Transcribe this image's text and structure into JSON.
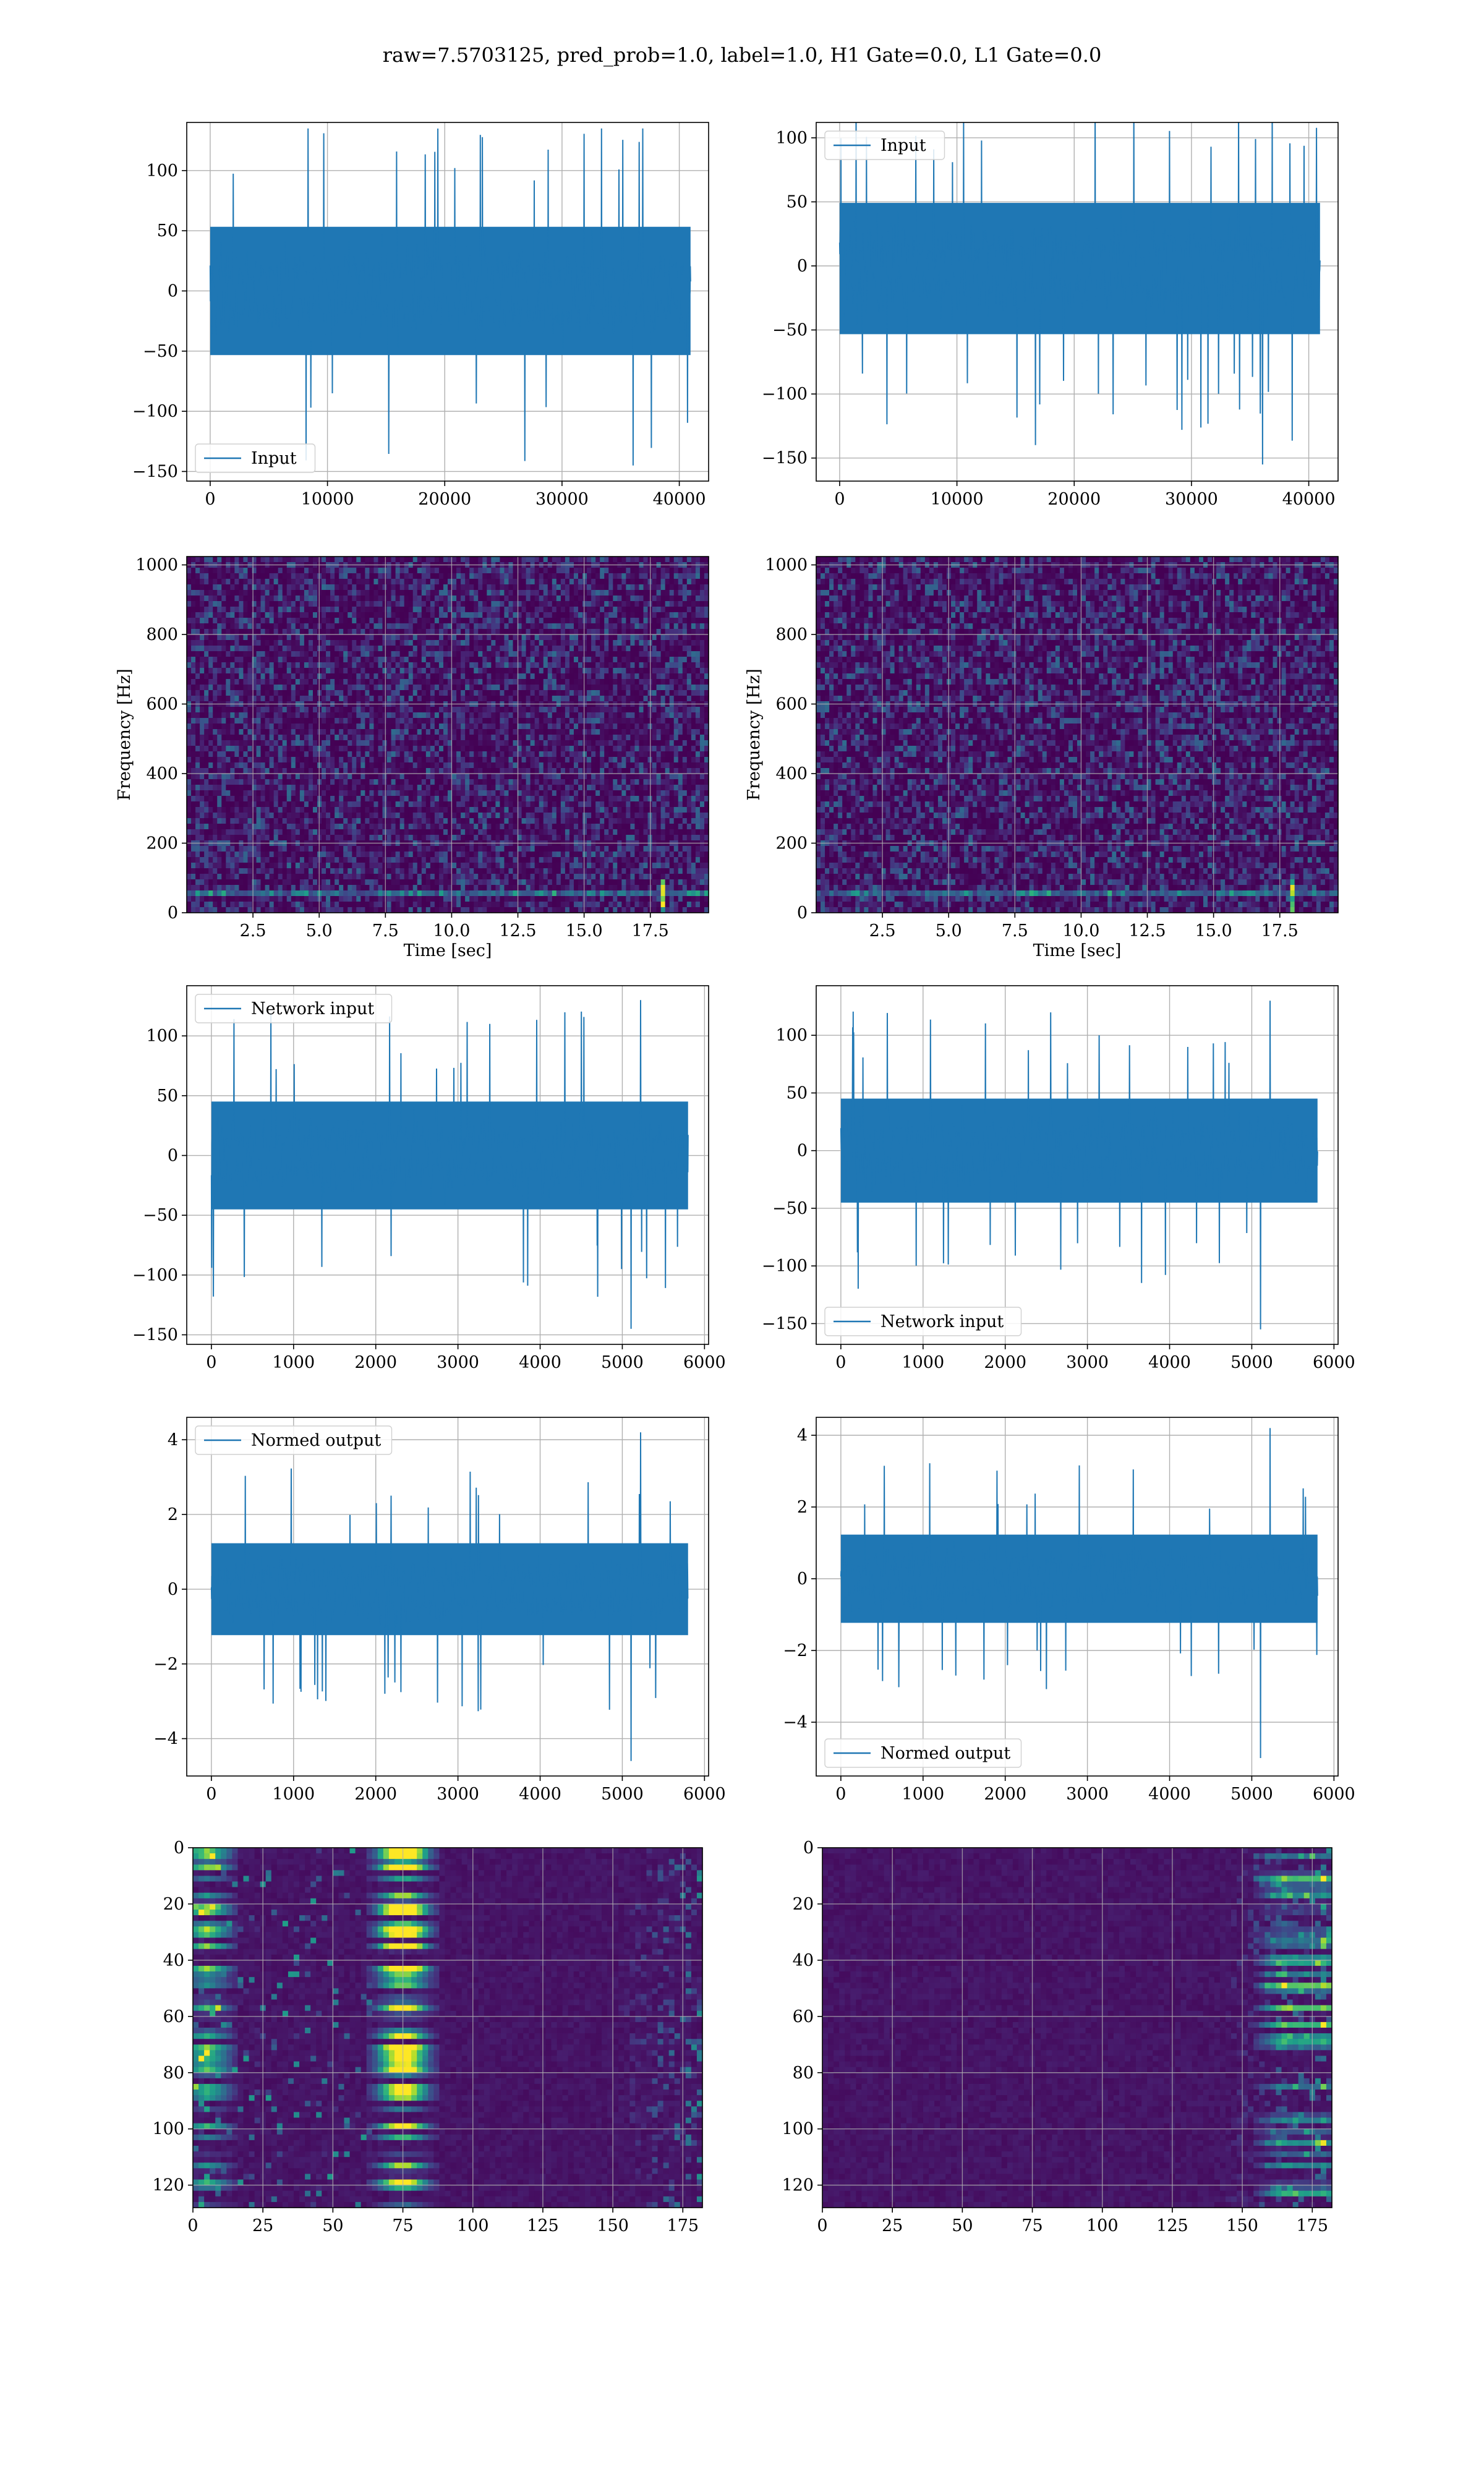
{
  "figure": {
    "title": "raw=7.5703125, pred_prob=1.0, label=1.0, H1 Gate=0.0, L1 Gate=0.0"
  },
  "colors": {
    "line": "#1f77b4",
    "grid": "#b0b0b0",
    "axes": "#000000",
    "viridis": [
      "#440154",
      "#482878",
      "#3e4989",
      "#31688e",
      "#26828e",
      "#1f9e89",
      "#35b779",
      "#6ece58",
      "#b5de2b",
      "#fde725"
    ]
  },
  "chart_data": [
    {
      "id": "h1-input",
      "type": "line",
      "series": [
        {
          "name": "Input",
          "x_range": [
            0,
            40960
          ],
          "envelope": {
            "core": [
              -65,
              65
            ],
            "peaks_max": 135,
            "peaks_min": -145
          }
        }
      ],
      "xlim": [
        -2000,
        42500
      ],
      "ylim": [
        -158,
        140
      ],
      "xticks": [
        0,
        10000,
        20000,
        30000,
        40000
      ],
      "xtick_labels": [
        "0",
        "10000",
        "20000",
        "30000",
        "40000"
      ],
      "yticks": [
        -150,
        -100,
        -50,
        0,
        50,
        100
      ],
      "ytick_labels": [
        "−150",
        "−100",
        "−50",
        "0",
        "50",
        "100"
      ],
      "legend": "lower-left",
      "grid": true,
      "xlabel": "",
      "ylabel": ""
    },
    {
      "id": "l1-input",
      "type": "line",
      "series": [
        {
          "name": "Input",
          "x_range": [
            0,
            40960
          ],
          "envelope": {
            "core": [
              -65,
              60
            ],
            "peaks_max": 130,
            "peaks_min": -155
          }
        }
      ],
      "xlim": [
        -2000,
        42500
      ],
      "ylim": [
        -168,
        112
      ],
      "xticks": [
        0,
        10000,
        20000,
        30000,
        40000
      ],
      "xtick_labels": [
        "0",
        "10000",
        "20000",
        "30000",
        "40000"
      ],
      "yticks": [
        -150,
        -100,
        -50,
        0,
        50,
        100
      ],
      "ytick_labels": [
        "−150",
        "−100",
        "−50",
        "0",
        "50",
        "100"
      ],
      "legend": "upper-left",
      "grid": true,
      "xlabel": "",
      "ylabel": ""
    },
    {
      "id": "h1-spectrogram",
      "type": "heatmap",
      "xlim": [
        0,
        19.7
      ],
      "ylim": [
        0,
        1024
      ],
      "xticks": [
        2.5,
        5.0,
        7.5,
        10.0,
        12.5,
        15.0,
        17.5
      ],
      "xtick_labels": [
        "2.5",
        "5.0",
        "7.5",
        "10.0",
        "12.5",
        "15.0",
        "17.5"
      ],
      "yticks": [
        0,
        200,
        400,
        600,
        800,
        1000
      ],
      "ytick_labels": [
        "0",
        "200",
        "400",
        "600",
        "800",
        "1000"
      ],
      "xlabel": "Time [sec]",
      "ylabel": "Frequency [Hz]",
      "grid": true,
      "features": {
        "line_hz": 50,
        "bright_time": 18.0
      }
    },
    {
      "id": "l1-spectrogram",
      "type": "heatmap",
      "xlim": [
        0,
        19.7
      ],
      "ylim": [
        0,
        1024
      ],
      "xticks": [
        2.5,
        5.0,
        7.5,
        10.0,
        12.5,
        15.0,
        17.5
      ],
      "xtick_labels": [
        "2.5",
        "5.0",
        "7.5",
        "10.0",
        "12.5",
        "15.0",
        "17.5"
      ],
      "yticks": [
        0,
        200,
        400,
        600,
        800,
        1000
      ],
      "ytick_labels": [
        "0",
        "200",
        "400",
        "600",
        "800",
        "1000"
      ],
      "xlabel": "Time [sec]",
      "ylabel": "Frequency [Hz]",
      "grid": true,
      "features": {
        "line_hz": 50,
        "bright_time": 18.0
      }
    },
    {
      "id": "h1-network-input",
      "type": "line",
      "series": [
        {
          "name": "Network input",
          "x_range": [
            0,
            5800
          ],
          "envelope": {
            "core": [
              -55,
              55
            ],
            "peaks_max": 130,
            "peaks_min": -145
          }
        }
      ],
      "xlim": [
        -300,
        6050
      ],
      "ylim": [
        -158,
        142
      ],
      "xticks": [
        0,
        1000,
        2000,
        3000,
        4000,
        5000,
        6000
      ],
      "xtick_labels": [
        "0",
        "1000",
        "2000",
        "3000",
        "4000",
        "5000",
        "6000"
      ],
      "yticks": [
        -150,
        -100,
        -50,
        0,
        50,
        100
      ],
      "ytick_labels": [
        "−150",
        "−100",
        "−50",
        "0",
        "50",
        "100"
      ],
      "legend": "upper-left",
      "grid": true,
      "xlabel": "",
      "ylabel": ""
    },
    {
      "id": "l1-network-input",
      "type": "line",
      "series": [
        {
          "name": "Network input",
          "x_range": [
            0,
            5800
          ],
          "envelope": {
            "core": [
              -55,
              55
            ],
            "peaks_max": 130,
            "peaks_min": -155
          }
        }
      ],
      "xlim": [
        -300,
        6050
      ],
      "ylim": [
        -168,
        143
      ],
      "xticks": [
        0,
        1000,
        2000,
        3000,
        4000,
        5000,
        6000
      ],
      "xtick_labels": [
        "0",
        "1000",
        "2000",
        "3000",
        "4000",
        "5000",
        "6000"
      ],
      "yticks": [
        -150,
        -100,
        -50,
        0,
        50,
        100
      ],
      "ytick_labels": [
        "−150",
        "−100",
        "−50",
        "0",
        "50",
        "100"
      ],
      "legend": "lower-left",
      "grid": true,
      "xlabel": "",
      "ylabel": ""
    },
    {
      "id": "h1-normed-output",
      "type": "line",
      "series": [
        {
          "name": "Normed output",
          "x_range": [
            0,
            5800
          ],
          "envelope": {
            "core": [
              -1.5,
              1.5
            ],
            "peaks_max": 4.2,
            "peaks_min": -4.6
          }
        }
      ],
      "xlim": [
        -300,
        6050
      ],
      "ylim": [
        -5.0,
        4.6
      ],
      "xticks": [
        0,
        1000,
        2000,
        3000,
        4000,
        5000,
        6000
      ],
      "xtick_labels": [
        "0",
        "1000",
        "2000",
        "3000",
        "4000",
        "5000",
        "6000"
      ],
      "yticks": [
        -4,
        -2,
        0,
        2,
        4
      ],
      "ytick_labels": [
        "−4",
        "−2",
        "0",
        "2",
        "4"
      ],
      "legend": "upper-left",
      "grid": true,
      "xlabel": "",
      "ylabel": ""
    },
    {
      "id": "l1-normed-output",
      "type": "line",
      "series": [
        {
          "name": "Normed output",
          "x_range": [
            0,
            5800
          ],
          "envelope": {
            "core": [
              -1.5,
              1.5
            ],
            "peaks_max": 4.2,
            "peaks_min": -5.0
          }
        }
      ],
      "xlim": [
        -300,
        6050
      ],
      "ylim": [
        -5.5,
        4.5
      ],
      "xticks": [
        0,
        1000,
        2000,
        3000,
        4000,
        5000,
        6000
      ],
      "xtick_labels": [
        "0",
        "1000",
        "2000",
        "3000",
        "4000",
        "5000",
        "6000"
      ],
      "yticks": [
        -4,
        -2,
        0,
        2,
        4
      ],
      "ytick_labels": [
        "−4",
        "−2",
        "0",
        "2",
        "4"
      ],
      "legend": "lower-left",
      "grid": true,
      "xlabel": "",
      "ylabel": ""
    },
    {
      "id": "h1-feature-map",
      "type": "heatmap",
      "xlim": [
        0,
        182
      ],
      "ylim": [
        128,
        0
      ],
      "xticks": [
        0,
        25,
        50,
        75,
        100,
        125,
        150,
        175
      ],
      "xtick_labels": [
        "0",
        "25",
        "50",
        "75",
        "100",
        "125",
        "150",
        "175"
      ],
      "yticks": [
        0,
        20,
        40,
        60,
        80,
        100,
        120
      ],
      "ytick_labels": [
        "0",
        "20",
        "40",
        "60",
        "80",
        "100",
        "120"
      ],
      "grid": true,
      "xlabel": "",
      "ylabel": "",
      "features": {
        "hot_columns": [
          5,
          72,
          77
        ],
        "texture_columns": [
          150,
          182
        ]
      }
    },
    {
      "id": "l1-feature-map",
      "type": "heatmap",
      "xlim": [
        0,
        182
      ],
      "ylim": [
        128,
        0
      ],
      "xticks": [
        0,
        25,
        50,
        75,
        100,
        125,
        150,
        175
      ],
      "xtick_labels": [
        "0",
        "25",
        "50",
        "75",
        "100",
        "125",
        "150",
        "175"
      ],
      "yticks": [
        0,
        20,
        40,
        60,
        80,
        100,
        120
      ],
      "ytick_labels": [
        "0",
        "20",
        "40",
        "60",
        "80",
        "100",
        "120"
      ],
      "grid": true,
      "xlabel": "",
      "ylabel": "",
      "features": {
        "hot_columns": [
          165,
          178
        ],
        "texture_columns": [
          140,
          182
        ]
      }
    }
  ]
}
